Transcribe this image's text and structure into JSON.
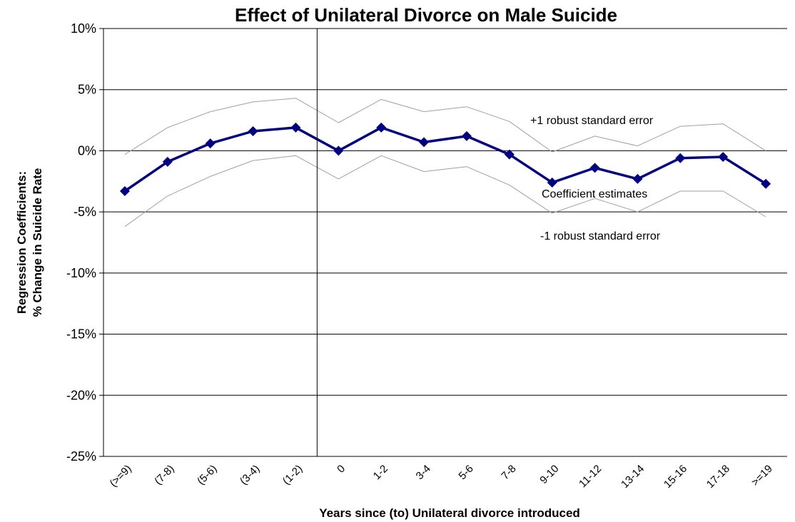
{
  "chart_data": {
    "type": "line",
    "title": "Effect of Unilateral Divorce on Male Suicide",
    "xlabel": "Years since (to) Unilateral divorce introduced",
    "ylabel_line1": "Regression Coefficients:",
    "ylabel_line2": "% Change in Suicide Rate",
    "categories": [
      "(>=9)",
      "(7-8)",
      "(5-6)",
      "(3-4)",
      "(1-2)",
      "0",
      "1-2",
      "3-4",
      "5-6",
      "7-8",
      "9-10",
      "11-12",
      "13-14",
      "15-16",
      "17-18",
      ">=19"
    ],
    "yticks": [
      "10%",
      "5%",
      "0%",
      "-5%",
      "-10%",
      "-15%",
      "-20%",
      "-25%"
    ],
    "ylim": [
      -25,
      10
    ],
    "grid": true,
    "series": [
      {
        "name": "+1 robust standard error",
        "color": "#a0a0a0",
        "values": [
          -0.3,
          1.9,
          3.2,
          4.0,
          4.3,
          2.3,
          4.2,
          3.2,
          3.6,
          2.4,
          -0.1,
          1.2,
          0.4,
          2.0,
          2.2,
          0.0
        ]
      },
      {
        "name": "Coefficient estimates",
        "color": "#000080",
        "values": [
          -3.3,
          -0.9,
          0.6,
          1.6,
          1.9,
          0.0,
          1.9,
          0.7,
          1.2,
          -0.3,
          -2.6,
          -1.4,
          -2.3,
          -0.6,
          -0.5,
          -2.7
        ]
      },
      {
        "name": "-1 robust standard error",
        "color": "#a0a0a0",
        "values": [
          -6.2,
          -3.7,
          -2.1,
          -0.8,
          -0.4,
          -2.3,
          -0.4,
          -1.7,
          -1.3,
          -2.8,
          -5.1,
          -3.9,
          -5.0,
          -3.3,
          -3.3,
          -5.4
        ]
      }
    ]
  }
}
